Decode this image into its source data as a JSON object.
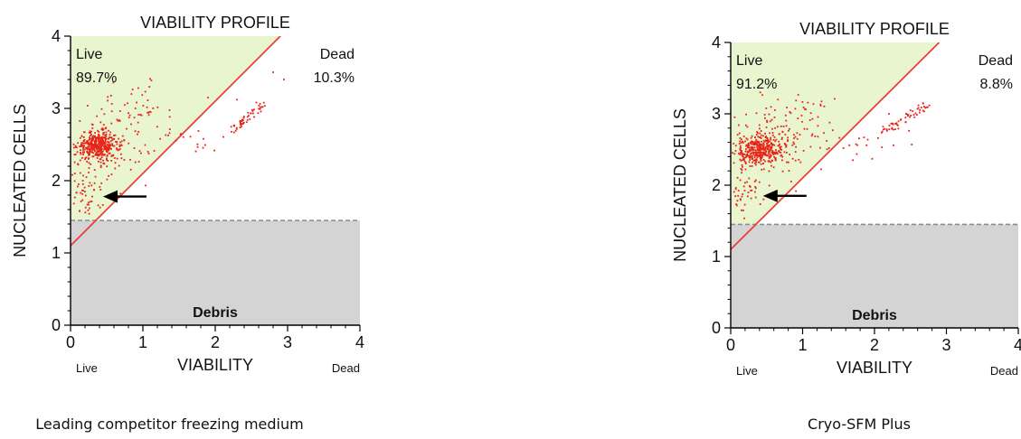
{
  "colors": {
    "live_region": "#e8f5cf",
    "debris_region": "#d4d4d4",
    "diagonal": "#e8413c",
    "points": "#e8231a",
    "threshold": "#8c8c8c",
    "arrow": "#000000",
    "text": "#111111"
  },
  "chart_data": [
    {
      "type": "scatter",
      "title": "VIABILITY PROFILE",
      "xlabel": "VIABILITY",
      "ylabel": "NUCLEATED CELLS",
      "xlim": [
        0,
        4
      ],
      "ylim": [
        0,
        4
      ],
      "xticks": [
        "0",
        "1",
        "2",
        "3",
        "4"
      ],
      "yticks": [
        "0",
        "1",
        "2",
        "3",
        "4"
      ],
      "x_end_labels": {
        "left": "Live",
        "right": "Dead"
      },
      "regions": {
        "live_label": "Live",
        "live_percent": "89.7%",
        "dead_label": "Dead",
        "dead_percent": "10.3%",
        "debris_label": "Debris",
        "debris_threshold_y": 1.45
      },
      "gate_line": {
        "intercept": 1.1,
        "slope": 1.0
      },
      "annotation": {
        "type": "arrow",
        "direction": "left",
        "x": 0.45,
        "y": 1.78
      },
      "caption": "Leading competitor freezing medium",
      "clusters": [
        {
          "name": "main",
          "cx": 0.38,
          "cy": 2.48,
          "sx": 0.14,
          "sy": 0.09,
          "n": 380
        },
        {
          "name": "spread",
          "cx": 0.55,
          "cy": 2.55,
          "sx": 0.3,
          "sy": 0.28,
          "n": 110
        },
        {
          "name": "low-tail",
          "cx": 0.2,
          "cy": 1.82,
          "sx": 0.13,
          "sy": 0.22,
          "n": 55
        },
        {
          "name": "live-upper",
          "cx": 0.9,
          "cy": 3.05,
          "sx": 0.22,
          "sy": 0.18,
          "n": 30
        },
        {
          "name": "dead-band",
          "cx": 1.7,
          "cy": 2.55,
          "sx": 0.3,
          "sy": 0.12,
          "n": 18
        },
        {
          "name": "dead-streak",
          "line": [
            [
              2.25,
              2.7
            ],
            [
              2.65,
              3.05
            ]
          ],
          "jitter": 0.035,
          "n": 55
        },
        {
          "name": "outliers",
          "points": [
            [
              2.8,
              3.5
            ],
            [
              2.95,
              3.4
            ],
            [
              1.9,
              3.15
            ],
            [
              2.3,
              3.12
            ]
          ]
        }
      ]
    },
    {
      "type": "scatter",
      "title": "VIABILITY PROFILE",
      "xlabel": "VIABILITY",
      "ylabel": "NUCLEATED CELLS",
      "xlim": [
        0,
        4
      ],
      "ylim": [
        0,
        4
      ],
      "xticks": [
        "0",
        "1",
        "2",
        "3",
        "4"
      ],
      "yticks": [
        "0",
        "1",
        "2",
        "3",
        "4"
      ],
      "x_end_labels": {
        "left": "Live",
        "right": "Dead"
      },
      "regions": {
        "live_label": "Live",
        "live_percent": "91.2%",
        "dead_label": "Dead",
        "dead_percent": "8.8%",
        "debris_label": "Debris",
        "debris_threshold_y": 1.45
      },
      "gate_line": {
        "intercept": 1.1,
        "slope": 1.0
      },
      "annotation": {
        "type": "arrow",
        "direction": "left",
        "x": 0.45,
        "y": 1.85
      },
      "caption": "Cryo-SFM Plus",
      "clusters": [
        {
          "name": "main",
          "cx": 0.4,
          "cy": 2.5,
          "sx": 0.16,
          "sy": 0.1,
          "n": 380
        },
        {
          "name": "spread",
          "cx": 0.6,
          "cy": 2.6,
          "sx": 0.32,
          "sy": 0.27,
          "n": 110
        },
        {
          "name": "low-tail",
          "cx": 0.22,
          "cy": 1.9,
          "sx": 0.12,
          "sy": 0.2,
          "n": 45
        },
        {
          "name": "live-upper",
          "cx": 1.0,
          "cy": 3.0,
          "sx": 0.22,
          "sy": 0.17,
          "n": 35
        },
        {
          "name": "dead-band",
          "cx": 1.7,
          "cy": 2.55,
          "sx": 0.3,
          "sy": 0.12,
          "n": 22
        },
        {
          "name": "dead-streak",
          "line": [
            [
              2.1,
              2.7
            ],
            [
              2.75,
              3.15
            ]
          ],
          "jitter": 0.04,
          "n": 55
        },
        {
          "name": "outliers",
          "points": [
            [
              2.5,
              3.05
            ],
            [
              2.2,
              3.0
            ]
          ]
        }
      ]
    }
  ]
}
